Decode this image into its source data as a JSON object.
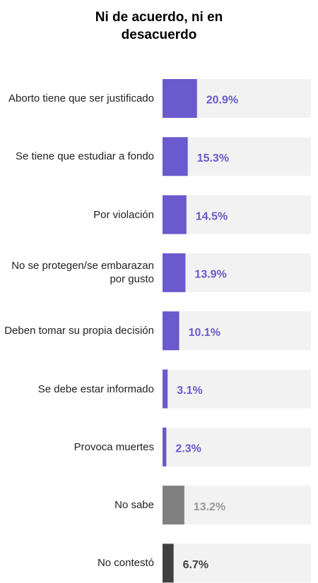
{
  "chart_data": {
    "type": "bar",
    "orientation": "horizontal",
    "title": "Ni de acuerdo, ni en desacuerdo",
    "categories": [
      "Aborto tiene que ser justificado",
      "Se tiene que estudiar a fondo",
      "Por violación",
      "No se protegen/se embarazan por gusto",
      "Deben tomar su propia decisión",
      "Se debe estar informado",
      "Provoca muertes",
      "No sabe",
      "No contestó"
    ],
    "values": [
      20.9,
      15.3,
      14.5,
      13.9,
      10.1,
      3.1,
      2.3,
      13.2,
      6.7
    ],
    "value_labels": [
      "20.9%",
      "15.3%",
      "14.5%",
      "13.9%",
      "10.1%",
      "3.1%",
      "2.3%",
      "13.2%",
      "6.7%"
    ],
    "colors": [
      "#6a5acd",
      "#6a5acd",
      "#6a5acd",
      "#6a5acd",
      "#6a5acd",
      "#6a5acd",
      "#6a5acd",
      "#808080",
      "#404040"
    ],
    "label_colors": [
      "#6a5acd",
      "#6a5acd",
      "#6a5acd",
      "#6a5acd",
      "#6a5acd",
      "#6a5acd",
      "#6a5acd",
      "#999999",
      "#404040"
    ],
    "xlim": [
      0,
      90
    ]
  }
}
